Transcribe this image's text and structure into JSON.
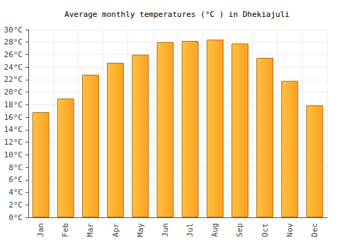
{
  "chart_data": {
    "type": "bar",
    "title": "Average monthly temperatures (°C ) in Dhekiajuli",
    "categories": [
      "Jan",
      "Feb",
      "Mar",
      "Apr",
      "May",
      "Jun",
      "Jul",
      "Aug",
      "Sep",
      "Oct",
      "Nov",
      "Dec"
    ],
    "values": [
      16.8,
      19.0,
      22.8,
      24.7,
      26.0,
      28.0,
      28.2,
      28.4,
      27.8,
      25.5,
      21.8,
      17.9
    ],
    "color": "#ffa020",
    "ylim": [
      0,
      30
    ],
    "yticks": [
      {
        "value": 0,
        "label": "0°C"
      },
      {
        "value": 2,
        "label": "2°C"
      },
      {
        "value": 4,
        "label": "4°C"
      },
      {
        "value": 6,
        "label": "6°C"
      },
      {
        "value": 8,
        "label": "8°C"
      },
      {
        "value": 10,
        "label": "10°C"
      },
      {
        "value": 12,
        "label": "12°C"
      },
      {
        "value": 14,
        "label": "14°C"
      },
      {
        "value": 16,
        "label": "16°C"
      },
      {
        "value": 18,
        "label": "18°C"
      },
      {
        "value": 20,
        "label": "20°C"
      },
      {
        "value": 22,
        "label": "22°C"
      },
      {
        "value": 24,
        "label": "24°C"
      },
      {
        "value": 26,
        "label": "26°C"
      },
      {
        "value": 28,
        "label": "28°C"
      },
      {
        "value": 30,
        "label": "30°C"
      }
    ],
    "grid": true
  }
}
